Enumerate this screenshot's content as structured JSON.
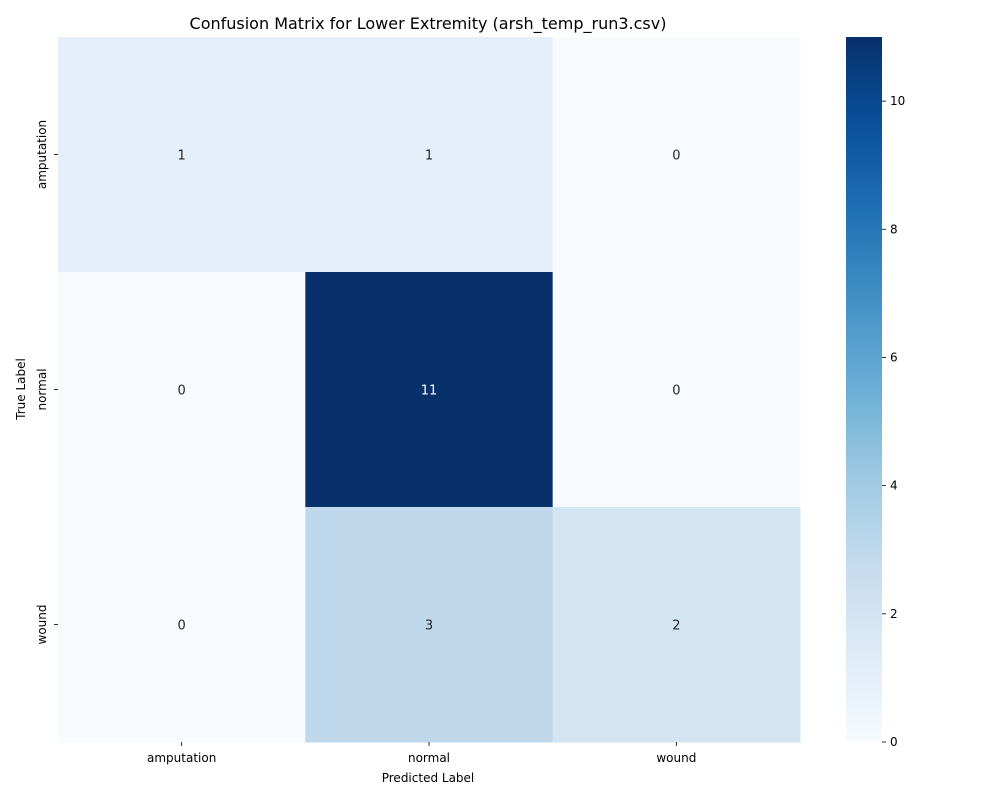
{
  "chart_data": {
    "type": "heatmap",
    "title": "Confusion Matrix for Lower Extremity (arsh_temp_run3.csv)",
    "xlabel": "Predicted Label",
    "ylabel": "True Label",
    "x_categories": [
      "amputation",
      "normal",
      "wound"
    ],
    "y_categories": [
      "amputation",
      "normal",
      "wound"
    ],
    "values": [
      [
        1,
        1,
        0
      ],
      [
        0,
        11,
        0
      ],
      [
        0,
        3,
        2
      ]
    ],
    "colormap": "Blues",
    "color_range": [
      0,
      11
    ],
    "colorbar_ticks": [
      0,
      2,
      4,
      6,
      8,
      10
    ],
    "colors": {
      "low": "#f7fbff",
      "high": "#08306b",
      "text_dark": "#262626",
      "text_light": "#ffffff"
    }
  }
}
